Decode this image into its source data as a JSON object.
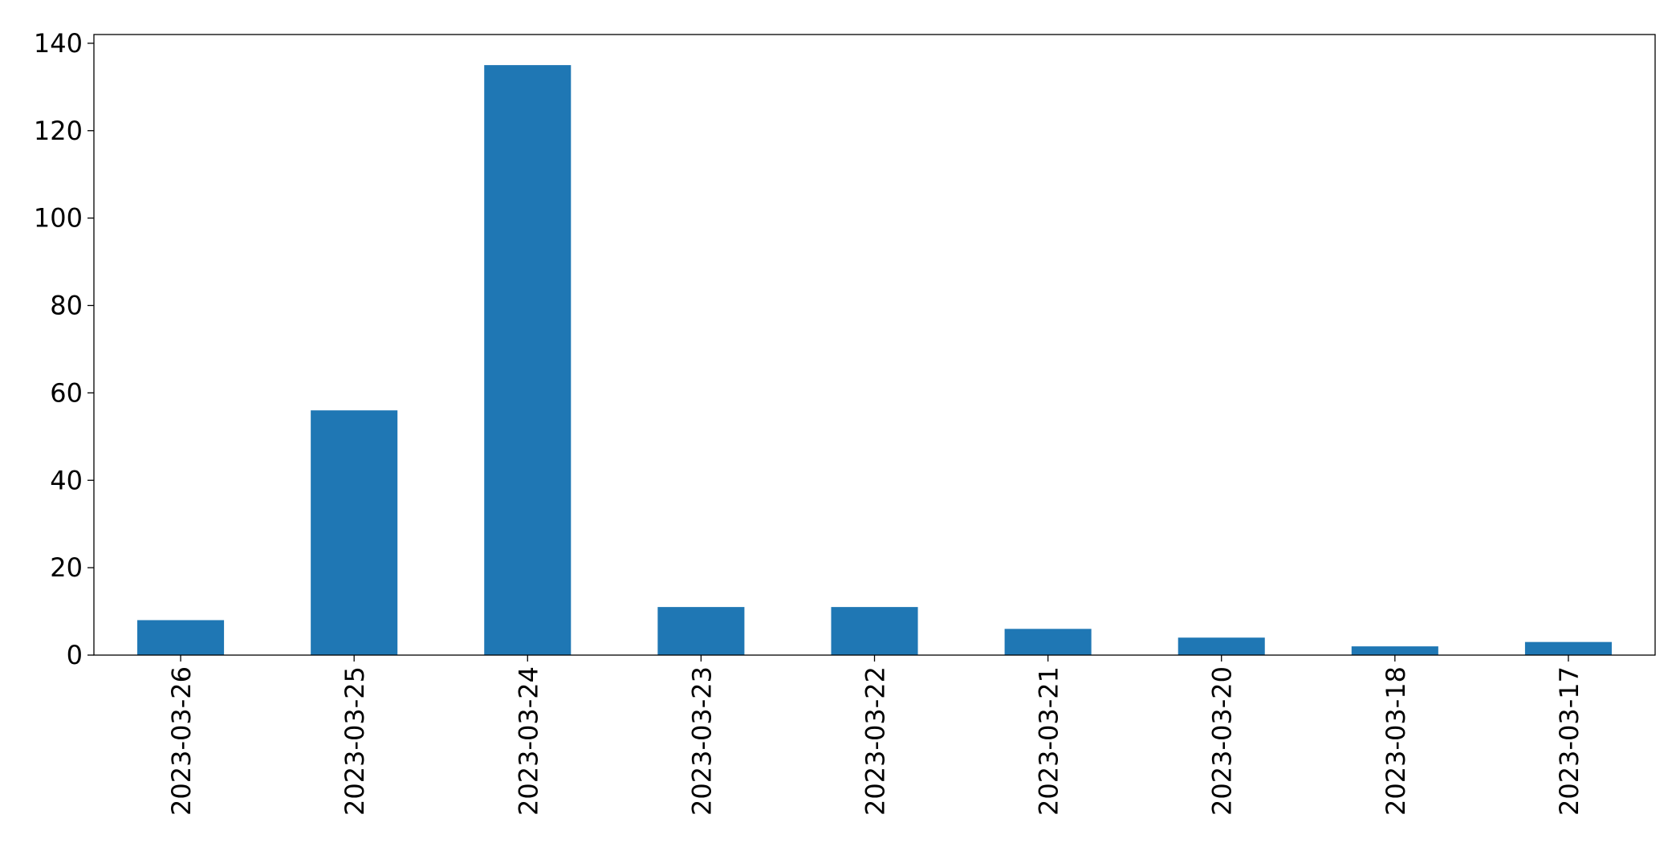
{
  "chart_data": {
    "type": "bar",
    "title": "",
    "xlabel": "",
    "ylabel": "",
    "categories": [
      "2023-03-26",
      "2023-03-25",
      "2023-03-24",
      "2023-03-23",
      "2023-03-22",
      "2023-03-21",
      "2023-03-20",
      "2023-03-18",
      "2023-03-17"
    ],
    "values": [
      8,
      56,
      135,
      11,
      11,
      6,
      4,
      2,
      3
    ],
    "ylim": [
      0,
      142
    ],
    "yticks": [
      0,
      20,
      40,
      60,
      80,
      100,
      120,
      140
    ],
    "grid": false,
    "legend": "none",
    "colors": {
      "bar": "#1f77b4",
      "axis": "#000000",
      "background": "#ffffff"
    }
  }
}
